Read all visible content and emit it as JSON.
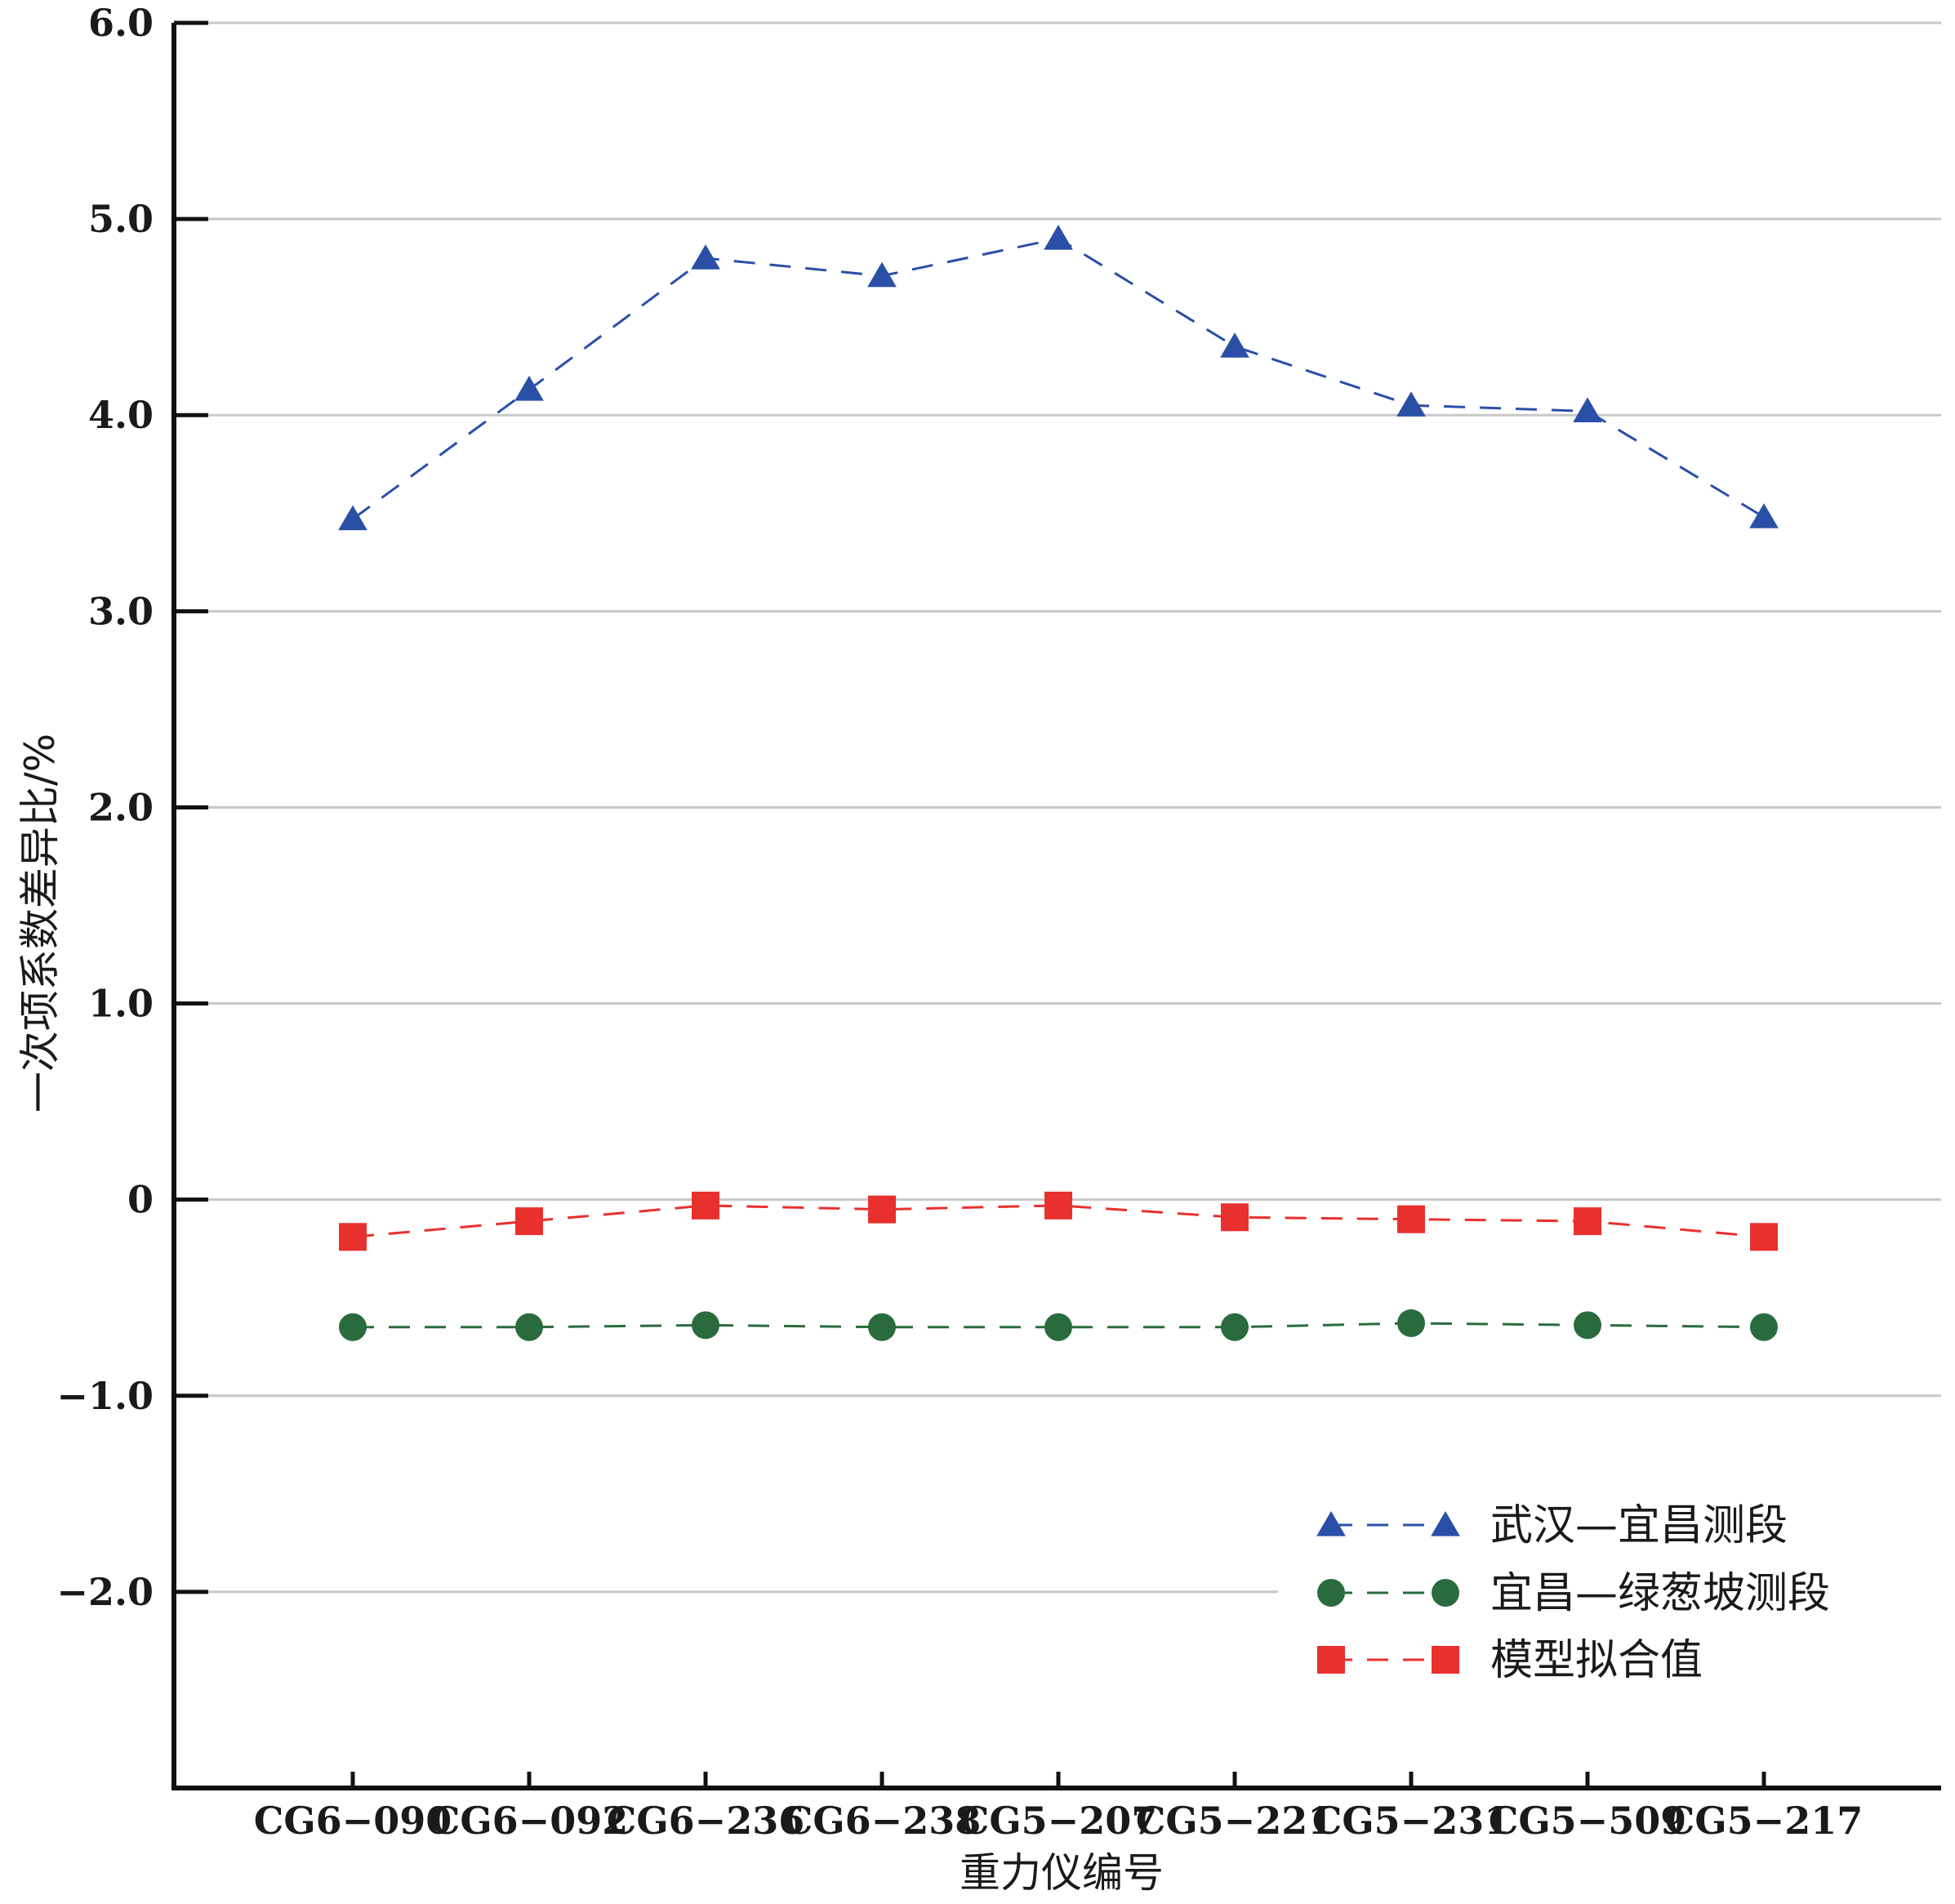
{
  "chart_data": {
    "type": "line",
    "xlabel": "重力仪编号",
    "ylabel": "一次项系数差异比/%",
    "ylim": [
      -3.0,
      6.0
    ],
    "yticks": [
      -2.0,
      -1.0,
      0,
      1.0,
      2.0,
      3.0,
      4.0,
      5.0,
      6.0
    ],
    "ytick_labels": [
      "−2.0",
      "−1.0",
      "0",
      "1.0",
      "2.0",
      "3.0",
      "4.0",
      "5.0",
      "6.0"
    ],
    "grid": true,
    "legend_position": "bottom-right",
    "categories": [
      "CG6−090",
      "CG6−092",
      "CG6−236",
      "CG6−238",
      "CG5−207",
      "CG5−221",
      "CG5−231",
      "CG5−509",
      "CG5−217"
    ],
    "series": [
      {
        "name": "武汉—宜昌测段",
        "marker": "triangle",
        "color": "#2a4fa6",
        "values": [
          3.47,
          4.13,
          4.8,
          4.71,
          4.9,
          4.35,
          4.05,
          4.02,
          3.48
        ]
      },
      {
        "name": "宜昌—绿葱坡测段",
        "marker": "circle",
        "color": "#2a6b3d",
        "values": [
          -0.65,
          -0.65,
          -0.64,
          -0.65,
          -0.65,
          -0.65,
          -0.63,
          -0.64,
          -0.65
        ]
      },
      {
        "name": "模型拟合值",
        "marker": "square",
        "color": "#e8302e",
        "values": [
          -0.19,
          -0.11,
          -0.03,
          -0.05,
          -0.03,
          -0.09,
          -0.1,
          -0.11,
          -0.19
        ]
      }
    ]
  }
}
